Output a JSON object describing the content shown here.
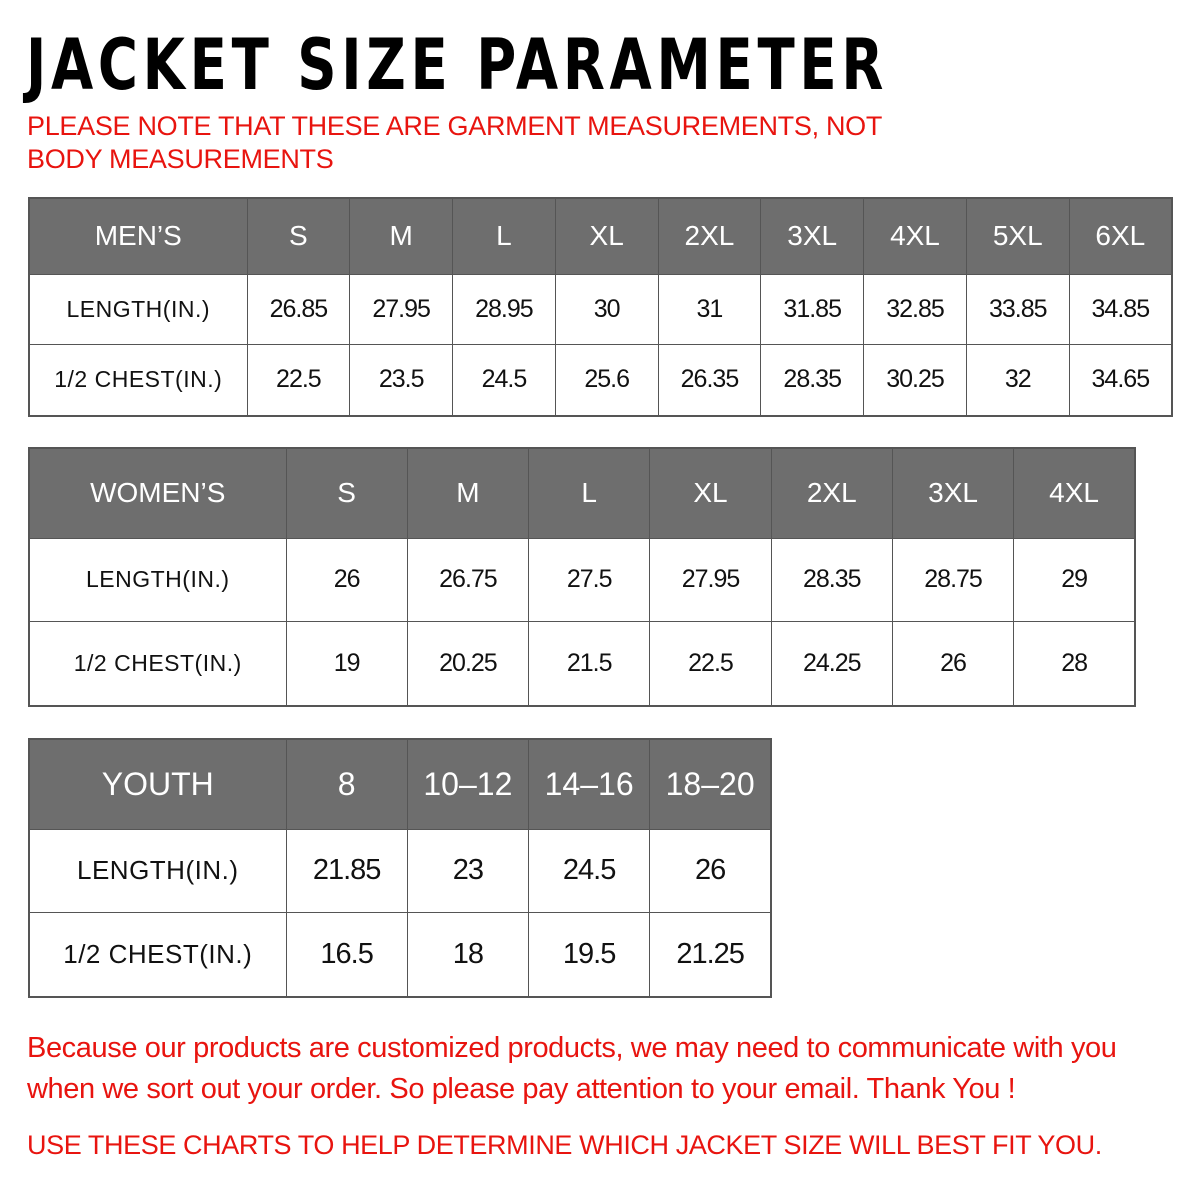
{
  "title": "JACKET SIZE PARAMETER",
  "note": "PLEASE NOTE THAT THESE ARE GARMENT MEASUREMENTS, NOT BODY MEASUREMENTS",
  "colors": {
    "accent_red": "#e8140f",
    "header_gray": "#6e6e6e"
  },
  "mens": {
    "header": [
      "MEN’S",
      "S",
      "M",
      "L",
      "XL",
      "2XL",
      "3XL",
      "4XL",
      "5XL",
      "6XL"
    ],
    "rows": [
      [
        "LENGTH(IN.)",
        "26.85",
        "27.95",
        "28.95",
        "30",
        "31",
        "31.85",
        "32.85",
        "33.85",
        "34.85"
      ],
      [
        "1/2 CHEST(IN.)",
        "22.5",
        "23.5",
        "24.5",
        "25.6",
        "26.35",
        "28.35",
        "30.25",
        "32",
        "34.65"
      ]
    ]
  },
  "womens": {
    "header": [
      "WOMEN’S",
      "S",
      "M",
      "L",
      "XL",
      "2XL",
      "3XL",
      "4XL"
    ],
    "rows": [
      [
        "LENGTH(IN.)",
        "26",
        "26.75",
        "27.5",
        "27.95",
        "28.35",
        "28.75",
        "29"
      ],
      [
        "1/2 CHEST(IN.)",
        "19",
        "20.25",
        "21.5",
        "22.5",
        "24.25",
        "26",
        "28"
      ]
    ]
  },
  "youth": {
    "header": [
      "YOUTH",
      "8",
      "10–12",
      "14–16",
      "18–20"
    ],
    "rows": [
      [
        "LENGTH(IN.)",
        "21.85",
        "23",
        "24.5",
        "26"
      ],
      [
        "1/2 CHEST(IN.)",
        "16.5",
        "18",
        "19.5",
        "21.25"
      ]
    ]
  },
  "footer": {
    "message": "Because our products are customized products, we may need to communicate with you when we sort out your order. So please pay attention to your email. Thank You !",
    "instruction": "USE THESE CHARTS TO HELP DETERMINE WHICH JACKET SIZE WILL BEST FIT YOU."
  }
}
